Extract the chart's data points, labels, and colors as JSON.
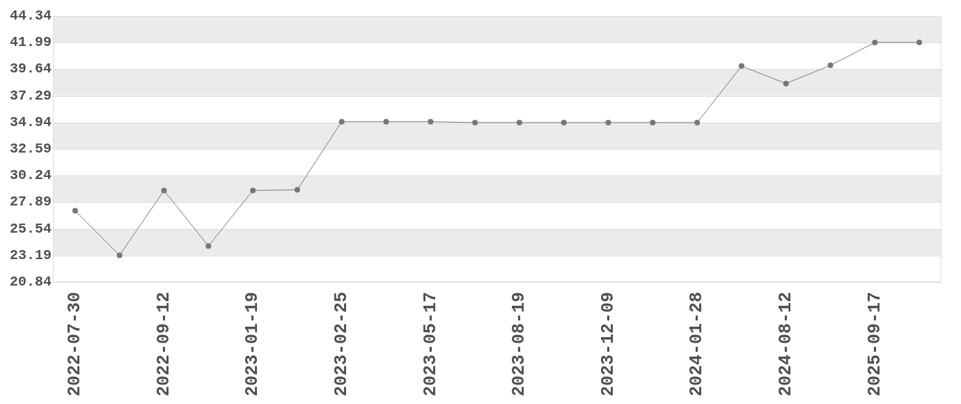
{
  "chart_data": {
    "type": "line",
    "categories": [
      "2022-07-30",
      null,
      "2022-09-12",
      null,
      "2023-01-19",
      null,
      "2023-02-25",
      null,
      "2023-05-17",
      null,
      "2023-08-19",
      null,
      "2023-12-09",
      null,
      "2024-01-28",
      null,
      "2024-08-12",
      null,
      "2025-09-17",
      null
    ],
    "values": [
      27.15,
      23.21,
      28.93,
      24.03,
      28.93,
      28.99,
      35.01,
      35.01,
      35.01,
      34.93,
      34.93,
      34.93,
      34.93,
      34.93,
      34.93,
      39.92,
      38.38,
      39.98,
      42.01,
      42.01
    ],
    "color": "#777777",
    "ylim": [
      20.84,
      44.34
    ],
    "yticks": [
      20.84,
      23.19,
      25.54,
      27.89,
      30.24,
      32.59,
      34.94,
      37.29,
      39.64,
      41.99,
      44.34
    ],
    "grid": "y",
    "marker": "circle"
  }
}
